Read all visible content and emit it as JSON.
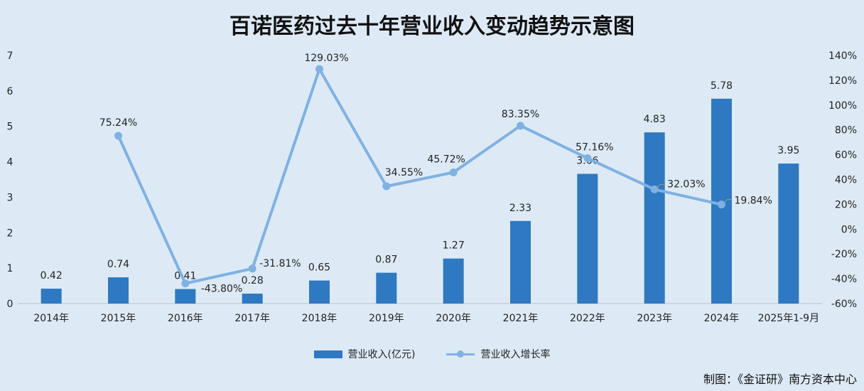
{
  "chart_data": {
    "type": "bar+line",
    "title": "百诺医药过去十年营业收入变动趋势示意图",
    "categories": [
      "2014年",
      "2015年",
      "2016年",
      "2017年",
      "2018年",
      "2019年",
      "2020年",
      "2021年",
      "2022年",
      "2023年",
      "2024年",
      "2025年1-9月"
    ],
    "series": [
      {
        "name": "营业收入(亿元)",
        "type": "bar",
        "axis": "left",
        "values": [
          0.42,
          0.74,
          0.41,
          0.28,
          0.65,
          0.87,
          1.27,
          2.33,
          3.66,
          4.83,
          5.78,
          3.95
        ],
        "labels": [
          "0.42",
          "0.74",
          "0.41",
          "0.28",
          "0.65",
          "0.87",
          "1.27",
          "2.33",
          "3.66",
          "4.83",
          "5.78",
          "3.95"
        ]
      },
      {
        "name": "营业收入增长率",
        "type": "line",
        "axis": "right",
        "values": [
          null,
          75.24,
          -43.8,
          -31.81,
          129.03,
          34.55,
          45.72,
          83.35,
          57.16,
          32.03,
          19.84,
          null
        ],
        "labels": [
          "",
          "75.24%",
          "-43.80%",
          "-31.81%",
          "129.03%",
          "34.55%",
          "45.72%",
          "83.35%",
          "57.16%",
          "32.03%",
          "19.84%",
          ""
        ]
      }
    ],
    "ylim_left": [
      0,
      7
    ],
    "yticks_left": [
      "0",
      "1",
      "2",
      "3",
      "4",
      "5",
      "6",
      "7"
    ],
    "ylim_right": [
      -60,
      140
    ],
    "yticks_right": [
      "-60%",
      "-40%",
      "-20%",
      "0%",
      "20%",
      "40%",
      "60%",
      "80%",
      "100%",
      "120%",
      "140%"
    ],
    "grid": false,
    "legend_position": "bottom",
    "colors": {
      "bar": "#2e79c1",
      "line": "#7fb1e3",
      "background": "#ddeaf6"
    }
  },
  "credit": "制图：《金证研》南方资本中心"
}
